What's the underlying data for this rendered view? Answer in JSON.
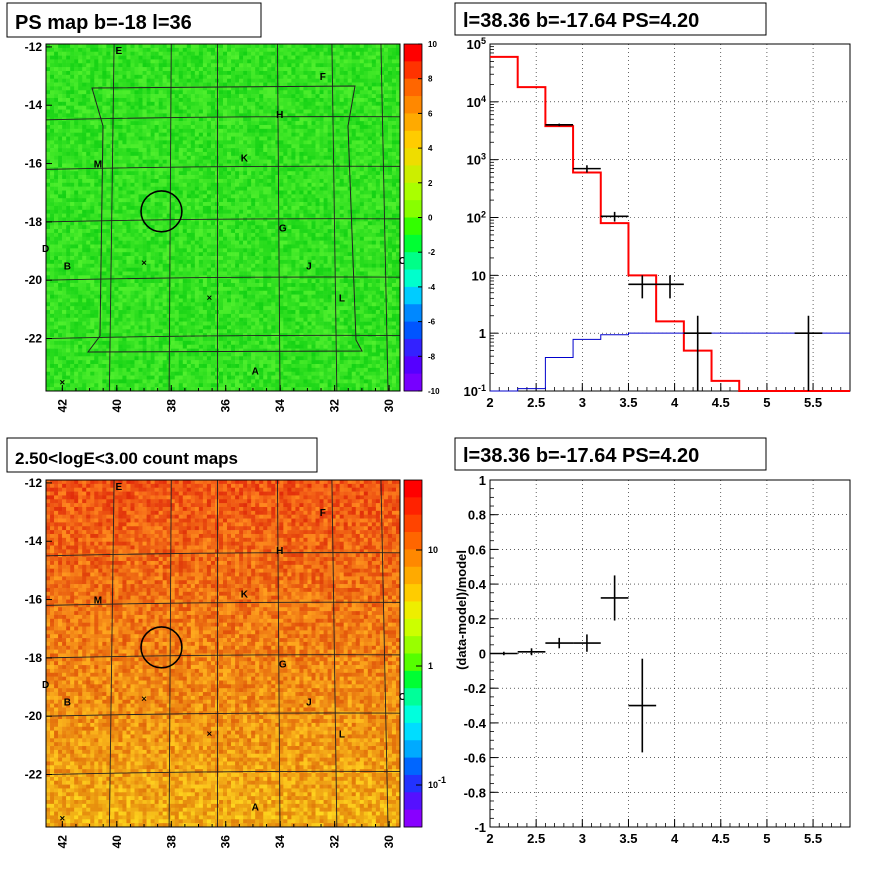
{
  "colors": {
    "model_line": "#ff0000",
    "data_points": "#000000",
    "background_line": "#0000cc",
    "grid": "#000000"
  },
  "chart_data": [
    {
      "type": "heatmap",
      "title": "PS map b=-18 l=36",
      "xticks": [
        "42",
        "40",
        "38",
        "36",
        "34",
        "32",
        "30"
      ],
      "yticks": [
        "-12",
        "-14",
        "-16",
        "-18",
        "-20",
        "-22"
      ],
      "xlim": [
        42.6,
        29.6
      ],
      "ylim": [
        -23.8,
        -11.9
      ],
      "colorbar_ticks": [
        "10",
        "8",
        "6",
        "4",
        "2",
        "0",
        "-2",
        "-4",
        "-6",
        "-8",
        "-10"
      ],
      "colorbar_range": [
        -10,
        10
      ],
      "dominant_value": 0.5,
      "source_labels": [
        {
          "text": "E",
          "l": 39.9,
          "b": -12.1
        },
        {
          "text": "F",
          "l": 32.4,
          "b": -13.0
        },
        {
          "text": "H",
          "l": 34.0,
          "b": -14.3
        },
        {
          "text": "K",
          "l": 35.3,
          "b": -15.8
        },
        {
          "text": "M",
          "l": 40.7,
          "b": -16.0
        },
        {
          "text": "G",
          "l": 33.9,
          "b": -18.2
        },
        {
          "text": "D",
          "l": 42.6,
          "b": -18.9
        },
        {
          "text": "B",
          "l": 41.8,
          "b": -19.5
        },
        {
          "text": "J",
          "l": 32.9,
          "b": -19.5
        },
        {
          "text": "C",
          "l": 29.5,
          "b": -19.3
        },
        {
          "text": "L",
          "l": 31.7,
          "b": -20.6
        },
        {
          "text": "A",
          "l": 34.9,
          "b": -23.1
        }
      ],
      "markers": [
        {
          "l": 39.0,
          "b": -19.4
        },
        {
          "l": 36.6,
          "b": -20.6
        },
        {
          "l": 42.0,
          "b": -23.5
        }
      ],
      "circle": {
        "l": 38.36,
        "b": -17.64,
        "radius_deg": 0.75
      }
    },
    {
      "type": "line",
      "title": "l=38.36 b=-17.64 PS=4.20",
      "xlim": [
        2,
        5.9
      ],
      "ylim": [
        0.1,
        100000
      ],
      "log_y": true,
      "xticks": [
        "2",
        "2.5",
        "3",
        "3.5",
        "4",
        "4.5",
        "5",
        "5.5"
      ],
      "yticks": [
        "10^5",
        "10^4",
        "10^3",
        "10^2",
        "10",
        "1",
        "10^-1"
      ],
      "grid": true,
      "series": [
        {
          "kind": "step",
          "edges": [
            2.0,
            2.3,
            2.6,
            2.9,
            3.2,
            3.5,
            3.8,
            4.1,
            4.4,
            4.7,
            5.0,
            5.3,
            5.6,
            5.9
          ],
          "values": [
            60000,
            18000,
            3800,
            600,
            80,
            10,
            1.6,
            0.5,
            0.15,
            0.1,
            0.1,
            0.1,
            0.1
          ]
        },
        {
          "kind": "step",
          "edges": [
            2.0,
            2.3,
            2.6,
            2.9,
            3.2,
            3.5,
            3.8,
            4.1,
            4.4,
            4.7,
            5.0,
            5.3,
            5.6,
            5.9
          ],
          "values": [
            0.1,
            0.11,
            0.38,
            0.78,
            0.94,
            1.0,
            1.0,
            1.0,
            1.0,
            1.0,
            1.0,
            1.0,
            1.0
          ]
        },
        {
          "kind": "points",
          "points": [
            {
              "x": 2.75,
              "y": 4000,
              "xerr": 0.15,
              "ylo": 3800,
              "yhi": 4200
            },
            {
              "x": 3.05,
              "y": 700,
              "xerr": 0.15,
              "ylo": 600,
              "yhi": 800
            },
            {
              "x": 3.35,
              "y": 105,
              "xerr": 0.15,
              "ylo": 85,
              "yhi": 125
            },
            {
              "x": 3.65,
              "y": 7,
              "xerr": 0.15,
              "ylo": 4,
              "yhi": 10
            },
            {
              "x": 3.95,
              "y": 7,
              "xerr": 0.15,
              "ylo": 4,
              "yhi": 10
            },
            {
              "x": 4.25,
              "y": 1,
              "xerr": 0.15,
              "ylo": 0.1,
              "yhi": 2
            },
            {
              "x": 5.45,
              "y": 1,
              "xerr": 0.15,
              "ylo": 0.1,
              "yhi": 2
            }
          ]
        }
      ]
    },
    {
      "type": "heatmap",
      "title": "2.50<logE<3.00 count maps",
      "xticks": [
        "42",
        "40",
        "38",
        "36",
        "34",
        "32",
        "30"
      ],
      "yticks": [
        "-12",
        "-14",
        "-16",
        "-18",
        "-20",
        "-22"
      ],
      "xlim": [
        42.6,
        29.6
      ],
      "ylim": [
        -23.8,
        -11.9
      ],
      "colorbar_ticks": [
        "10",
        "1",
        "10^-1"
      ],
      "colorbar_log": true,
      "source_labels": [
        {
          "text": "E",
          "l": 39.9,
          "b": -12.1
        },
        {
          "text": "F",
          "l": 32.4,
          "b": -13.0
        },
        {
          "text": "H",
          "l": 34.0,
          "b": -14.3
        },
        {
          "text": "K",
          "l": 35.3,
          "b": -15.8
        },
        {
          "text": "M",
          "l": 40.7,
          "b": -16.0
        },
        {
          "text": "G",
          "l": 33.9,
          "b": -18.2
        },
        {
          "text": "D",
          "l": 42.6,
          "b": -18.9
        },
        {
          "text": "B",
          "l": 41.8,
          "b": -19.5
        },
        {
          "text": "J",
          "l": 32.9,
          "b": -19.5
        },
        {
          "text": "C",
          "l": 29.5,
          "b": -19.3
        },
        {
          "text": "L",
          "l": 31.7,
          "b": -20.6
        },
        {
          "text": "A",
          "l": 34.9,
          "b": -23.1
        }
      ],
      "markers": [
        {
          "l": 39.0,
          "b": -19.4
        },
        {
          "l": 36.6,
          "b": -20.6
        },
        {
          "l": 42.0,
          "b": -23.5
        }
      ],
      "circle": {
        "l": 38.36,
        "b": -17.64,
        "radius_deg": 0.75
      }
    },
    {
      "type": "scatter",
      "title": "l=38.36 b=-17.64 PS=4.20",
      "ylabel": "(data-model)/model",
      "xlim": [
        2,
        5.9
      ],
      "ylim": [
        -1,
        1
      ],
      "xticks": [
        "2",
        "2.5",
        "3",
        "3.5",
        "4",
        "4.5",
        "5",
        "5.5"
      ],
      "yticks": [
        "1",
        "0.8",
        "0.6",
        "0.4",
        "0.2",
        "0",
        "-0.2",
        "-0.4",
        "-0.6",
        "-0.8",
        "-1"
      ],
      "grid": true,
      "points": [
        {
          "x": 2.15,
          "y": 0.0,
          "xerr": 0.15,
          "yerr": 0.01
        },
        {
          "x": 2.45,
          "y": 0.01,
          "xerr": 0.15,
          "yerr": 0.02
        },
        {
          "x": 2.75,
          "y": 0.06,
          "xerr": 0.15,
          "yerr": 0.03
        },
        {
          "x": 3.05,
          "y": 0.06,
          "xerr": 0.15,
          "yerr": 0.05
        },
        {
          "x": 3.35,
          "y": 0.32,
          "xerr": 0.15,
          "yerr": 0.13
        },
        {
          "x": 3.65,
          "y": -0.3,
          "xerr": 0.15,
          "yerr": 0.27
        }
      ]
    }
  ]
}
